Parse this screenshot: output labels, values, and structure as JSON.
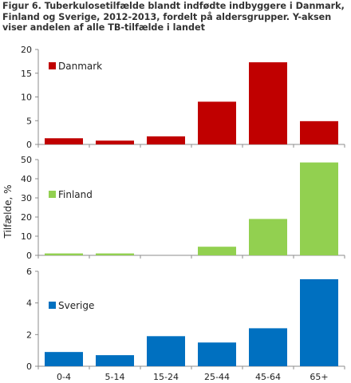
{
  "title": "Figur 6. Tuberkulosetilfælde blandt indfødte indbyggere i Danmark, Finland og Sverige, 2012-2013, fordelt på aldersgrupper. Y-aksen viser andelen af alle TB-tilfælde i landet",
  "chart_data": {
    "type": "bar",
    "title": "Figur 6. Tuberkulosetilfælde blandt indfødte indbyggere i Danmark, Finland og Sverige, 2012-2013, fordelt på aldersgrupper. Y-aksen viser andelen af alle TB-tilfælde i landet",
    "ylabel": "Tilfælde, %",
    "xlabel": "",
    "categories": [
      "0-4",
      "5-14",
      "15-24",
      "25-44",
      "45-64",
      "65+"
    ],
    "grid": false,
    "panels": [
      {
        "name": "Danmark",
        "color": "#c00000",
        "values": [
          1.3,
          0.8,
          1.7,
          9.0,
          17.3,
          4.9
        ],
        "ylim": [
          0,
          20
        ],
        "yticks": [
          0,
          5,
          10,
          15,
          20
        ],
        "legend_position": "top-left"
      },
      {
        "name": "Finland",
        "color": "#92d050",
        "values": [
          1.0,
          1.0,
          0.0,
          4.5,
          19.0,
          48.5
        ],
        "ylim": [
          0,
          50
        ],
        "yticks": [
          0,
          10,
          20,
          30,
          40,
          50
        ],
        "legend_position": "middle-left"
      },
      {
        "name": "Sverige",
        "color": "#0070c0",
        "values": [
          0.9,
          0.7,
          1.9,
          1.5,
          2.4,
          5.5
        ],
        "ylim": [
          0,
          6
        ],
        "yticks": [
          0,
          2,
          4,
          6
        ],
        "legend_position": "middle-left"
      }
    ]
  }
}
